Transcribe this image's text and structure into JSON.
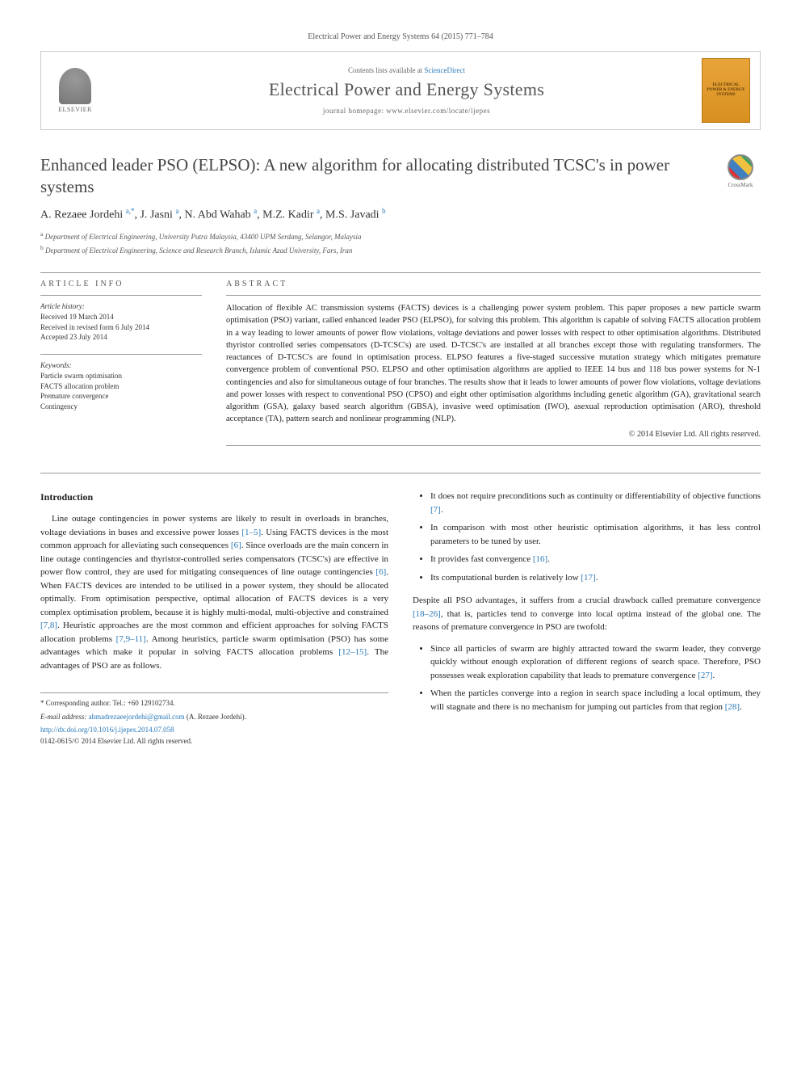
{
  "citation": "Electrical Power and Energy Systems 64 (2015) 771–784",
  "header": {
    "contents_prefix": "Contents lists available at ",
    "contents_link": "ScienceDirect",
    "journal_name": "Electrical Power and Energy Systems",
    "homepage_prefix": "journal homepage: ",
    "homepage_url": "www.elsevier.com/locate/ijepes",
    "publisher": "ELSEVIER",
    "cover_text": "ELECTRICAL POWER & ENERGY SYSTEMS"
  },
  "crossmark_label": "CrossMark",
  "title": "Enhanced leader PSO (ELPSO): A new algorithm for allocating distributed TCSC's in power systems",
  "authors_html": "A. Rezaee Jordehi <sup>a,*</sup>, J. Jasni <sup>a</sup>, N. Abd Wahab <sup>a</sup>, M.Z. Kadir <sup>a</sup>, M.S. Javadi <sup>b</sup>",
  "affiliations": {
    "a": "Department of Electrical Engineering, University Putra Malaysia, 43400 UPM Serdang, Selangor, Malaysia",
    "b": "Department of Electrical Engineering, Science and Research Branch, Islamic Azad University, Fars, Iran"
  },
  "article_info": {
    "heading": "ARTICLE INFO",
    "history_label": "Article history:",
    "received": "Received 19 March 2014",
    "revised": "Received in revised form 6 July 2014",
    "accepted": "Accepted 23 July 2014",
    "keywords_label": "Keywords:",
    "keywords": [
      "Particle swarm optimisation",
      "FACTS allocation problem",
      "Premature convergence",
      "Contingency"
    ]
  },
  "abstract": {
    "heading": "ABSTRACT",
    "text": "Allocation of flexible AC transmission systems (FACTS) devices is a challenging power system problem. This paper proposes a new particle swarm optimisation (PSO) variant, called enhanced leader PSO (ELPSO), for solving this problem. This algorithm is capable of solving FACTS allocation problem in a way leading to lower amounts of power flow violations, voltage deviations and power losses with respect to other optimisation algorithms. Distributed thyristor controlled series compensators (D-TCSC's) are used. D-TCSC's are installed at all branches except those with regulating transformers. The reactances of D-TCSC's are found in optimisation process. ELPSO features a five-staged successive mutation strategy which mitigates premature convergence problem of conventional PSO. ELPSO and other optimisation algorithms are applied to IEEE 14 bus and 118 bus power systems for N-1 contingencies and also for simultaneous outage of four branches. The results show that it leads to lower amounts of power flow violations, voltage deviations and power losses with respect to conventional PSO (CPSO) and eight other optimisation algorithms including genetic algorithm (GA), gravitational search algorithm (GSA), galaxy based search algorithm (GBSA), invasive weed optimisation (IWO), asexual reproduction optimisation (ARO), threshold acceptance (TA), pattern search and nonlinear programming (NLP).",
    "copyright": "© 2014 Elsevier Ltd. All rights reserved."
  },
  "body": {
    "intro_heading": "Introduction",
    "para1_pre": "Line outage contingencies in power systems are likely to result in overloads in branches, voltage deviations in buses and excessive power losses ",
    "ref1": "[1–5]",
    "para1_mid1": ". Using FACTS devices is the most common approach for alleviating such consequences ",
    "ref6a": "[6]",
    "para1_mid2": ". Since overloads are the main concern in line outage contingencies and thyristor-controlled series compensators (TCSC's) are effective in power flow control, they are used for mitigating consequences of line outage contingencies ",
    "ref6b": "[6]",
    "para1_mid3": ". When FACTS devices are intended to be utilised in a power system, they should be allocated optimally. From optimisation perspective, optimal allocation of FACTS devices is a very complex optimisation problem, because it is highly multi-modal, multi-objective and constrained ",
    "ref78": "[7,8]",
    "para1_mid4": ". Heuristic approaches are the most common and efficient approaches for solving FACTS allocation problems ",
    "ref7911": "[7,9–11]",
    "para1_mid5": ". Among heuristics, particle swarm optimisation (PSO) has some advantages which make it popular in solving FACTS allocation problems ",
    "ref1215": "[12–15]",
    "para1_end": ". The advantages of PSO are as follows.",
    "bullets1": [
      {
        "text": "It does not require preconditions such as continuity or differentiability of objective functions ",
        "ref": "[7]",
        "tail": "."
      },
      {
        "text": "In comparison with most other heuristic optimisation algorithms, it has less control parameters to be tuned by user.",
        "ref": "",
        "tail": ""
      },
      {
        "text": "It provides fast convergence ",
        "ref": "[16]",
        "tail": "."
      },
      {
        "text": "Its computational burden is relatively low ",
        "ref": "[17]",
        "tail": "."
      }
    ],
    "para2_pre": "Despite all PSO advantages, it suffers from a crucial drawback called premature convergence ",
    "ref1826": "[18–26]",
    "para2_end": ", that is, particles tend to converge into local optima instead of the global one. The reasons of premature convergence in PSO are twofold:",
    "bullets2": [
      {
        "text": "Since all particles of swarm are highly attracted toward the swarm leader, they converge quickly without enough exploration of different regions of search space. Therefore, PSO possesses weak exploration capability that leads to premature convergence ",
        "ref": "[27]",
        "tail": "."
      },
      {
        "text": "When the particles converge into a region in search space including a local optimum, they will stagnate and there is no mechanism for jumping out particles from that region ",
        "ref": "[28]",
        "tail": "."
      }
    ]
  },
  "footer": {
    "corresponding_label": "* Corresponding author. Tel.: +60 129102734.",
    "email_label": "E-mail address: ",
    "email": "ahmadrezaeejordehi@gmail.com",
    "email_name": " (A. Rezaee Jordehi).",
    "doi": "http://dx.doi.org/10.1016/j.ijepes.2014.07.058",
    "issn": "0142-0615/© 2014 Elsevier Ltd. All rights reserved."
  },
  "colors": {
    "link": "#2878b8",
    "text": "#222222",
    "heading": "#444444",
    "border": "#cccccc",
    "cover_bg": "#e8a43a"
  }
}
